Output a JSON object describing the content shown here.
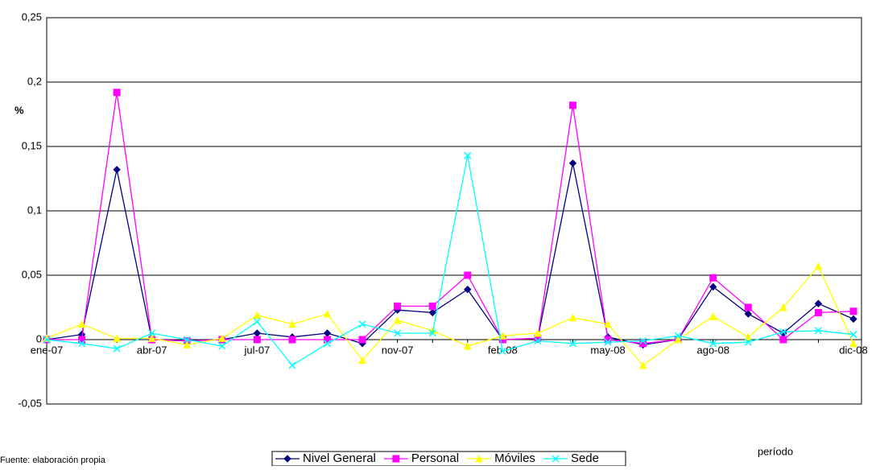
{
  "chart_data": {
    "type": "line",
    "y_label": "%",
    "x_label": "período",
    "note": "Fuente: elaboración propia",
    "categories": [
      "ene-07",
      null,
      null,
      "abr-07",
      null,
      null,
      "jul-07",
      null,
      null,
      null,
      "nov-07",
      null,
      null,
      "feb-08",
      null,
      null,
      "may-08",
      null,
      null,
      "ago-08",
      null,
      null,
      null,
      "dic-08"
    ],
    "ylim": [
      -0.05,
      0.25
    ],
    "yticks": [
      {
        "value": -0.05,
        "label": "-0,05"
      },
      0,
      {
        "value": 0.05,
        "label": "0,05"
      },
      {
        "value": 0.1,
        "label": "0,1"
      },
      {
        "value": 0.15,
        "label": "0,15"
      },
      {
        "value": 0.2,
        "label": "0,2"
      },
      {
        "value": 0.25,
        "label": "0,25"
      }
    ],
    "grid": true,
    "legend": "bottom",
    "series": [
      {
        "name": "Nivel General",
        "color": "#000080",
        "marker": "diamond",
        "values": [
          0,
          0.004,
          0.132,
          0,
          -0.001,
          0,
          0.005,
          0.002,
          0.005,
          -0.003,
          0.023,
          0.021,
          0.039,
          0,
          0.001,
          0.137,
          0.002,
          -0.004,
          0,
          0.041,
          0.02,
          0.005,
          0.028,
          0.016
        ]
      },
      {
        "name": "Personal",
        "color": "#ff00ff",
        "marker": "square",
        "values": [
          0,
          0,
          0.192,
          0,
          -0.001,
          0,
          0,
          0,
          0,
          0,
          0.026,
          0.026,
          0.05,
          0,
          0.001,
          0.182,
          0,
          -0.003,
          0,
          0.048,
          0.025,
          0,
          0.021,
          0.022
        ]
      },
      {
        "name": "Móviles",
        "color": "#ffff00",
        "marker": "triangle",
        "values": [
          0.001,
          0.012,
          0.001,
          0.001,
          -0.004,
          0.001,
          0.019,
          0.012,
          0.02,
          -0.016,
          0.015,
          0.007,
          -0.005,
          0.003,
          0.005,
          0.017,
          0.012,
          -0.02,
          0,
          0.018,
          0.002,
          0.025,
          0.057,
          -0.003
        ]
      },
      {
        "name": "Sede",
        "color": "#00ffff",
        "marker": "x",
        "values": [
          0,
          -0.003,
          -0.007,
          0.005,
          0,
          -0.005,
          0.014,
          -0.02,
          -0.003,
          0.012,
          0.005,
          0.005,
          0.143,
          -0.009,
          -0.001,
          -0.003,
          -0.002,
          -0.001,
          0.003,
          -0.003,
          -0.002,
          0.006,
          0.007,
          0.004
        ]
      }
    ]
  }
}
